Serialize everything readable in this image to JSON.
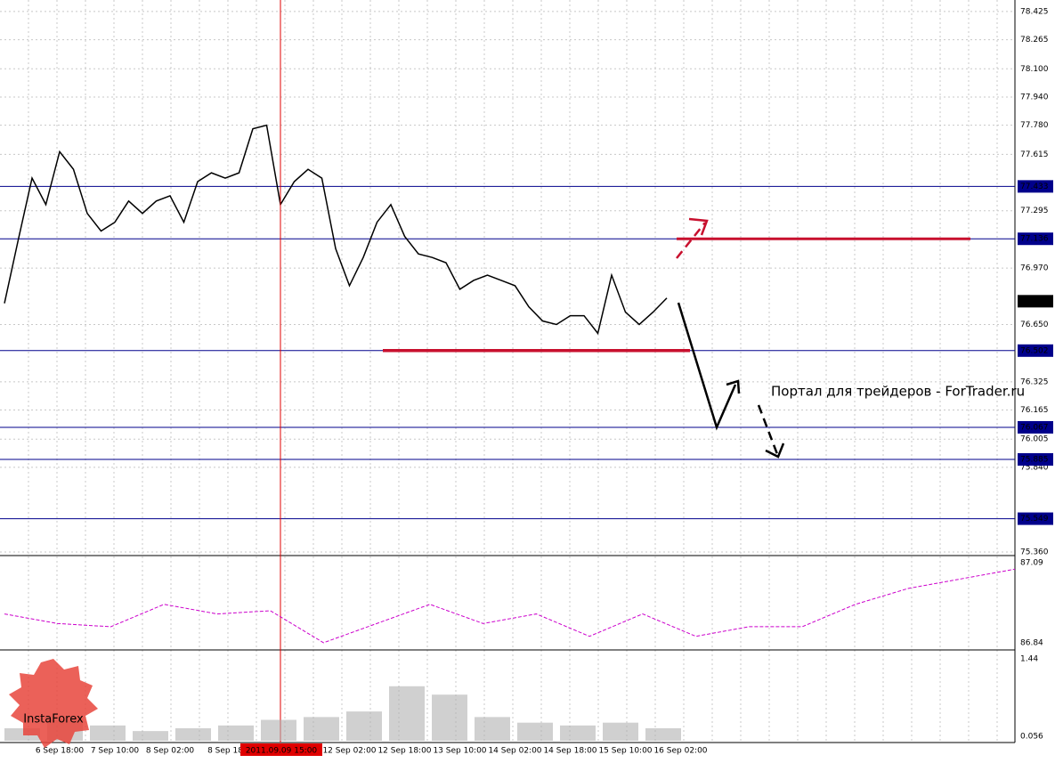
{
  "chart_data": [
    {
      "type": "line",
      "color": "#000000",
      "categories": [
        null,
        null,
        null,
        null,
        "6 Sep 18:00",
        null,
        null,
        null,
        "7 Sep 10:00",
        null,
        null,
        null,
        "8 Sep 02:00",
        null,
        null,
        null,
        "8 Sep 18",
        null,
        null,
        null,
        "2011.09.09 15:00",
        null,
        null,
        null,
        null,
        "12 Sep 02:00",
        null,
        null,
        null,
        "12 Sep 18:00",
        null,
        null,
        null,
        "13 Sep 10:00",
        null,
        null,
        null,
        "14 Sep 02:00",
        null,
        null,
        null,
        "14 Sep 18:00",
        null,
        null,
        null,
        "15 Sep 10:00",
        null,
        null,
        null,
        "16 Sep 02:00",
        null
      ],
      "values": [
        76.77,
        77.13,
        77.48,
        77.33,
        77.63,
        77.53,
        77.28,
        77.18,
        77.23,
        77.35,
        77.28,
        77.35,
        77.38,
        77.23,
        77.46,
        77.51,
        77.48,
        77.51,
        77.76,
        77.78,
        77.33,
        77.46,
        77.53,
        77.48,
        77.08,
        76.87,
        77.03,
        77.23,
        77.33,
        77.15,
        77.05,
        77.03,
        77.0,
        76.85,
        76.9,
        76.93,
        76.9,
        76.87,
        76.75,
        76.67,
        76.65,
        76.7,
        76.7,
        76.6,
        76.93,
        76.72,
        76.65,
        76.72,
        76.8,
        null,
        null
      ],
      "ylim": [
        75.35,
        78.49
      ],
      "yticks": [
        78.425,
        78.265,
        {
          "value": 78.1,
          "label": "78.100"
        },
        {
          "value": 77.94,
          "label": "77.940"
        },
        {
          "value": 77.78,
          "label": "77.780"
        },
        77.615,
        77.295,
        {
          "value": 76.97,
          "label": "76.970"
        },
        {
          "value": 76.65,
          "label": "76.650"
        },
        76.325,
        76.165,
        {
          "value": 76.0,
          "label": "76.005"
        },
        {
          "value": 75.84,
          "label": "75.840"
        },
        {
          "value": 75.36,
          "label": "75.360"
        }
      ],
      "levels": [
        77.433,
        77.136,
        76.502,
        76.067,
        75.885,
        75.549
      ],
      "level_color": "#00008b",
      "last_price": 76.782,
      "grid": true
    },
    {
      "type": "line",
      "color": "#cc00cc",
      "values": [
        86.93,
        86.9,
        86.89,
        86.96,
        86.93,
        86.94,
        86.84,
        86.9,
        86.96,
        86.9,
        86.93,
        86.86,
        86.93,
        86.86,
        86.89,
        86.89,
        86.96,
        87.01,
        87.04,
        87.07
      ],
      "ylim": [
        86.823,
        87.107
      ],
      "yticks": [
        87.09,
        86.84
      ]
    },
    {
      "type": "bar",
      "color": "#b0b0b0",
      "values": [
        0.2,
        0.35,
        0.25,
        0.15,
        0.2,
        0.25,
        0.35,
        0.4,
        0.5,
        0.95,
        0.8,
        0.4,
        0.3,
        0.25,
        0.3,
        0.2
      ],
      "ylim": [
        -0.023,
        1.567
      ],
      "yticks": [
        1.44,
        0.056
      ]
    }
  ],
  "watermark": "Портал для трейдеров - ForTrader.ru",
  "logo": "InstaForex"
}
